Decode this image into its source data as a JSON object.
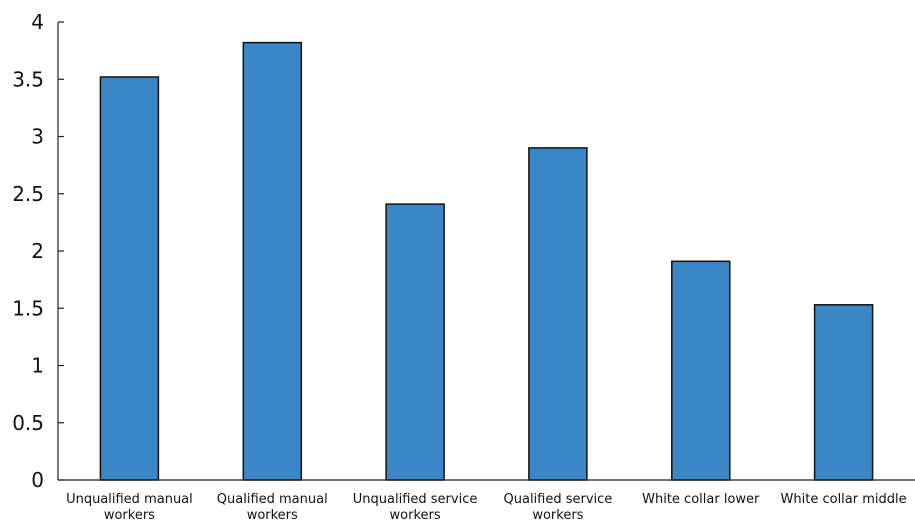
{
  "chart_data": {
    "type": "bar",
    "categories": [
      [
        "Unqualified manual",
        "workers"
      ],
      [
        "Qualified manual",
        "workers"
      ],
      [
        "Unqualified service",
        "workers"
      ],
      [
        "Qualified service",
        "workers"
      ],
      [
        "White collar lower"
      ],
      [
        "White collar middle"
      ]
    ],
    "values": [
      3.52,
      3.82,
      2.41,
      2.9,
      1.91,
      1.53
    ],
    "ylim": [
      0,
      4
    ],
    "yticks": [
      "0",
      "0.5",
      "1",
      "1.5",
      "2",
      "2.5",
      "3",
      "3.5",
      "4"
    ],
    "title": "",
    "xlabel": "",
    "ylabel": "",
    "grid": false,
    "colors": {
      "bar": "#3a87c8",
      "bar_edge": "#111111",
      "axis": "#222222"
    }
  }
}
